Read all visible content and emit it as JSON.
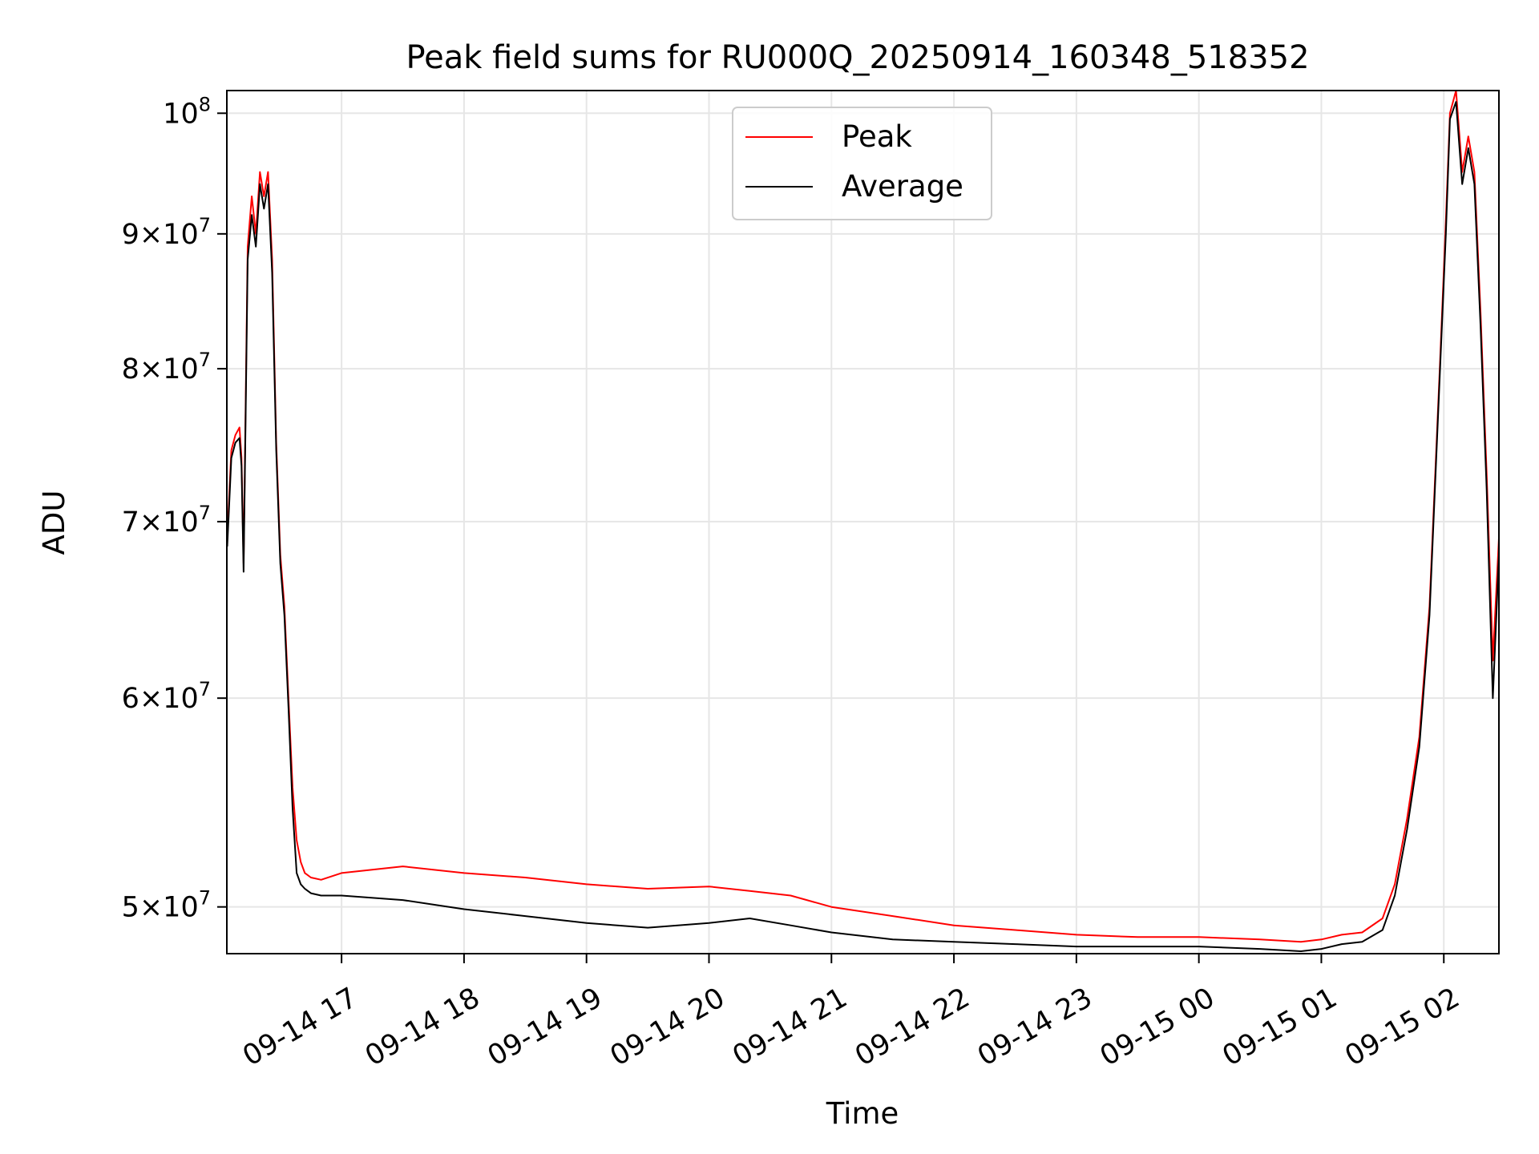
{
  "chart_data": {
    "type": "line",
    "title": "Peak field sums for RU000Q_20250914_160348_518352",
    "xlabel": "Time",
    "ylabel": "ADU",
    "yscale": "log",
    "ylim": [
      48000000,
      102000000
    ],
    "xlim": [
      "2025-09-14 16:03:48",
      "2025-09-15 02:27:00"
    ],
    "grid": true,
    "legend_position": "top-center",
    "x_ticks": [
      {
        "at": "2025-09-14 17:00",
        "label": "09-14 17"
      },
      {
        "at": "2025-09-14 18:00",
        "label": "09-14 18"
      },
      {
        "at": "2025-09-14 19:00",
        "label": "09-14 19"
      },
      {
        "at": "2025-09-14 20:00",
        "label": "09-14 20"
      },
      {
        "at": "2025-09-14 21:00",
        "label": "09-14 21"
      },
      {
        "at": "2025-09-14 22:00",
        "label": "09-14 22"
      },
      {
        "at": "2025-09-14 23:00",
        "label": "09-14 23"
      },
      {
        "at": "2025-09-15 00:00",
        "label": "09-15 00"
      },
      {
        "at": "2025-09-15 01:00",
        "label": "09-15 01"
      },
      {
        "at": "2025-09-15 02:00",
        "label": "09-15 02"
      }
    ],
    "y_ticks": [
      {
        "value": 50000000,
        "mantissa": "5",
        "exponent": "7"
      },
      {
        "value": 60000000,
        "mantissa": "6",
        "exponent": "7"
      },
      {
        "value": 70000000,
        "mantissa": "7",
        "exponent": "7"
      },
      {
        "value": 80000000,
        "mantissa": "8",
        "exponent": "7"
      },
      {
        "value": 90000000,
        "mantissa": "9",
        "exponent": "7"
      },
      {
        "value": 100000000,
        "mantissa": "10",
        "exponent": "8"
      }
    ],
    "x": [
      "2025-09-14 16:04",
      "2025-09-14 16:06",
      "2025-09-14 16:08",
      "2025-09-14 16:10",
      "2025-09-14 16:11",
      "2025-09-14 16:12",
      "2025-09-14 16:14",
      "2025-09-14 16:16",
      "2025-09-14 16:18",
      "2025-09-14 16:20",
      "2025-09-14 16:22",
      "2025-09-14 16:24",
      "2025-09-14 16:26",
      "2025-09-14 16:28",
      "2025-09-14 16:30",
      "2025-09-14 16:32",
      "2025-09-14 16:34",
      "2025-09-14 16:36",
      "2025-09-14 16:38",
      "2025-09-14 16:40",
      "2025-09-14 16:42",
      "2025-09-14 16:45",
      "2025-09-14 16:50",
      "2025-09-14 17:00",
      "2025-09-14 17:30",
      "2025-09-14 18:00",
      "2025-09-14 18:30",
      "2025-09-14 19:00",
      "2025-09-14 19:30",
      "2025-09-14 20:00",
      "2025-09-14 20:20",
      "2025-09-14 20:40",
      "2025-09-14 21:00",
      "2025-09-14 21:30",
      "2025-09-14 22:00",
      "2025-09-14 22:30",
      "2025-09-14 23:00",
      "2025-09-14 23:30",
      "2025-09-15 00:00",
      "2025-09-15 00:30",
      "2025-09-15 00:50",
      "2025-09-15 01:00",
      "2025-09-15 01:10",
      "2025-09-15 01:20",
      "2025-09-15 01:30",
      "2025-09-15 01:36",
      "2025-09-15 01:42",
      "2025-09-15 01:48",
      "2025-09-15 01:53",
      "2025-09-15 01:58",
      "2025-09-15 02:01",
      "2025-09-15 02:03",
      "2025-09-15 02:06",
      "2025-09-15 02:09",
      "2025-09-15 02:12",
      "2025-09-15 02:15",
      "2025-09-15 02:18",
      "2025-09-15 02:21",
      "2025-09-15 02:24",
      "2025-09-15 02:27"
    ],
    "series": [
      {
        "name": "Peak",
        "color": "#ff0000",
        "values": [
          69000000,
          74500000,
          75500000,
          76000000,
          74000000,
          67500000,
          89000000,
          93000000,
          90000000,
          95000000,
          93000000,
          95000000,
          88000000,
          75000000,
          68000000,
          65000000,
          60000000,
          55500000,
          53000000,
          52000000,
          51500000,
          51300000,
          51200000,
          51500000,
          51800000,
          51500000,
          51300000,
          51000000,
          50800000,
          50900000,
          50700000,
          50500000,
          50000000,
          49600000,
          49200000,
          49000000,
          48800000,
          48700000,
          48700000,
          48600000,
          48500000,
          48600000,
          48800000,
          48900000,
          49500000,
          51000000,
          54000000,
          58000000,
          65000000,
          80000000,
          91000000,
          100000000,
          102000000,
          95000000,
          98000000,
          95000000,
          84000000,
          73000000,
          62000000,
          69000000
        ]
      },
      {
        "name": "Average",
        "color": "#000000",
        "values": [
          68500000,
          74000000,
          75000000,
          75300000,
          73500000,
          67000000,
          88000000,
          91500000,
          89000000,
          94000000,
          92000000,
          94000000,
          87000000,
          74500000,
          67500000,
          64500000,
          59500000,
          54500000,
          51500000,
          51000000,
          50800000,
          50600000,
          50500000,
          50500000,
          50300000,
          49900000,
          49600000,
          49300000,
          49100000,
          49300000,
          49500000,
          49200000,
          48900000,
          48600000,
          48500000,
          48400000,
          48300000,
          48300000,
          48300000,
          48200000,
          48100000,
          48200000,
          48400000,
          48500000,
          49000000,
          50500000,
          53500000,
          57500000,
          64500000,
          79500000,
          90000000,
          99500000,
          101000000,
          94000000,
          97000000,
          94000000,
          83000000,
          72000000,
          60000000,
          68000000
        ]
      }
    ]
  }
}
